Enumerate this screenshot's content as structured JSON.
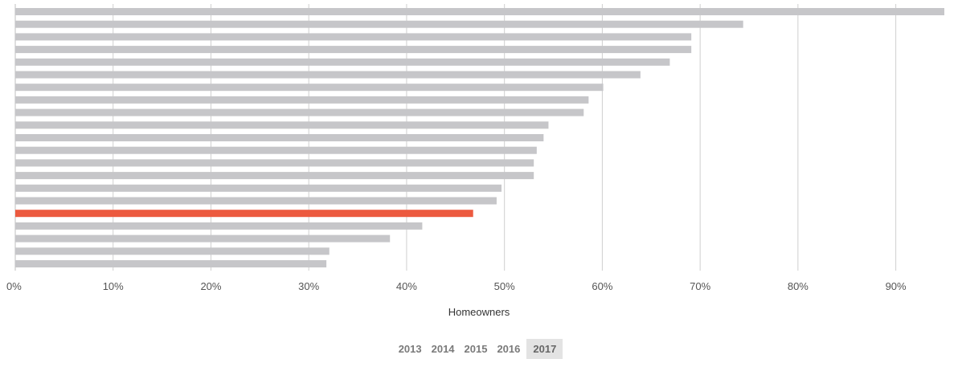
{
  "chart_data": {
    "type": "bar",
    "orientation": "horizontal",
    "xlabel": "Homeowners",
    "xlim": [
      0,
      95
    ],
    "x_ticks": [
      "0%",
      "10%",
      "20%",
      "30%",
      "40%",
      "50%",
      "60%",
      "70%",
      "80%",
      "90%"
    ],
    "x_tick_values": [
      0,
      10,
      20,
      30,
      40,
      50,
      60,
      70,
      80,
      90
    ],
    "values": [
      95.5,
      74.4,
      69.1,
      69.1,
      66.9,
      63.9,
      60.1,
      58.6,
      58.1,
      54.5,
      54.0,
      53.3,
      53.0,
      53.0,
      49.7,
      49.2,
      46.8,
      41.6,
      38.3,
      32.1,
      31.8
    ],
    "highlight_index": 16,
    "grid": true,
    "colors": {
      "bar": "#c6c6c9",
      "highlight": "#ec5a3f",
      "grid": "#cfcfcf"
    }
  },
  "year_selector": {
    "years": [
      "2013",
      "2014",
      "2015",
      "2016",
      "2017"
    ],
    "selected": "2017"
  }
}
